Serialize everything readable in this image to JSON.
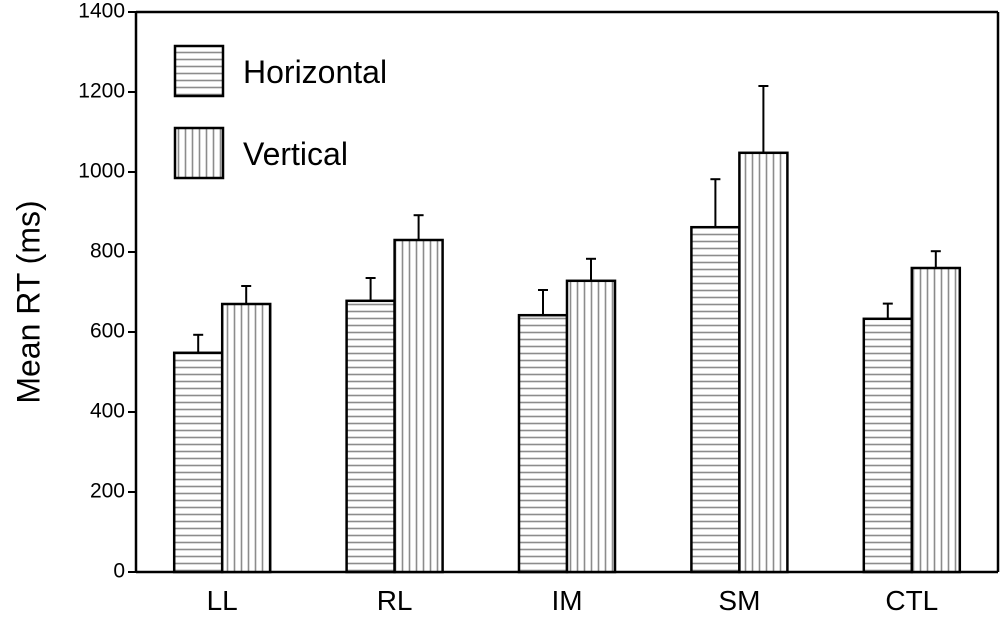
{
  "chart_data": {
    "type": "bar",
    "title": "",
    "xlabel": "",
    "ylabel": "Mean RT (ms)",
    "ylim": [
      0,
      1400
    ],
    "yticks": [
      0,
      200,
      400,
      600,
      800,
      1000,
      1200,
      1400
    ],
    "categories": [
      "LL",
      "RL",
      "IM",
      "SM",
      "CTL"
    ],
    "series": [
      {
        "name": "Horizontal",
        "pattern": "horizontal-stripes",
        "values": [
          548,
          678,
          642,
          862,
          633
        ],
        "errors": [
          45,
          57,
          63,
          120,
          38
        ]
      },
      {
        "name": "Vertical",
        "pattern": "vertical-stripes",
        "values": [
          670,
          830,
          728,
          1048,
          760
        ],
        "errors": [
          45,
          62,
          55,
          167,
          42
        ]
      }
    ],
    "grid": false,
    "legend_position": "top-left",
    "colors": {
      "bar_fill": "#ffffff",
      "stripe": "#8c8c8c",
      "stroke": "#000000"
    }
  }
}
